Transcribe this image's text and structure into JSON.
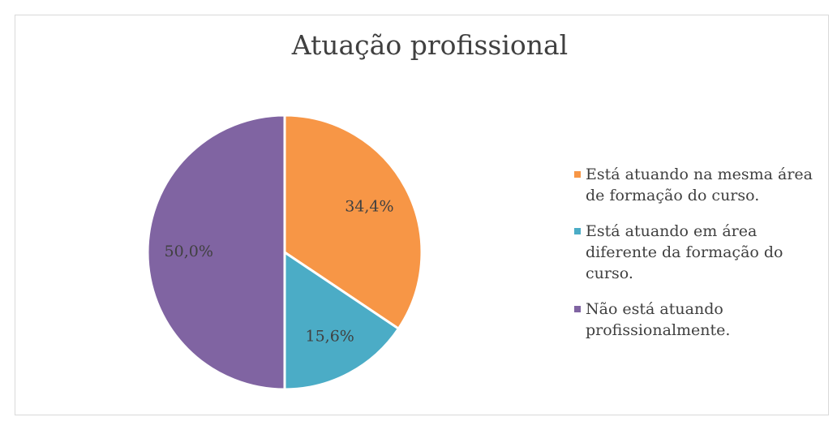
{
  "chart_data": {
    "type": "pie",
    "title": "Atuação profissional",
    "categories": [
      "Está atuando na mesma área de formação do curso.",
      "Está atuando em área diferente da formação do curso.",
      "Não está atuando profissionalmente."
    ],
    "values": [
      34.4,
      15.6,
      50.0
    ],
    "value_labels": [
      "34,4%",
      "15,6%",
      "50,0%"
    ],
    "colors": [
      "#f79646",
      "#4bacc6",
      "#8064a2"
    ],
    "legend": "right"
  }
}
